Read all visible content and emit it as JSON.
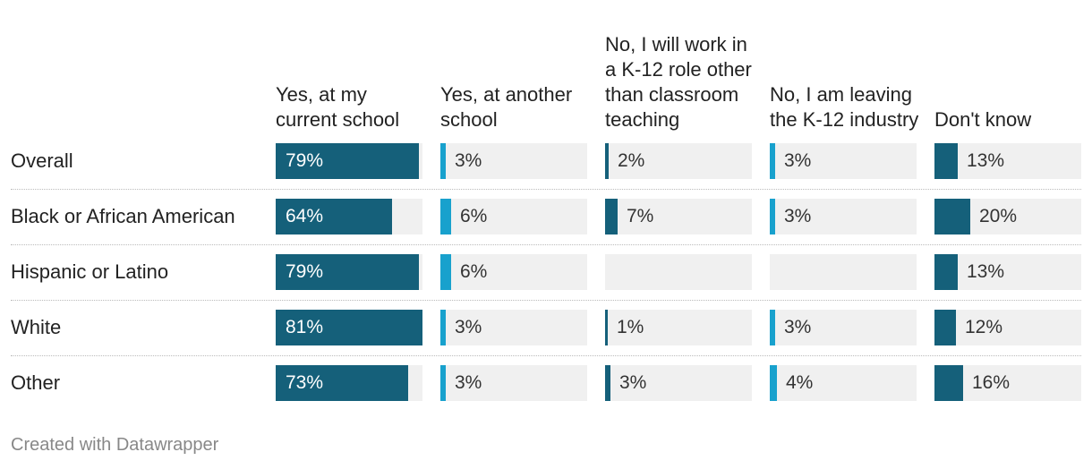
{
  "chart_data": {
    "type": "table",
    "columns": [
      "Yes, at my current school",
      "Yes, at another school",
      "No, I will work in a K-12 role other than classroom teaching",
      "No, I am leaving the K-12 industry",
      "Don't know"
    ],
    "column_colors": [
      "#15607a",
      "#18a1cd",
      "#15607a",
      "#18a1cd",
      "#15607a"
    ],
    "rows": [
      {
        "label": "Overall",
        "values": [
          79,
          3,
          2,
          3,
          13
        ]
      },
      {
        "label": "Black or African American",
        "values": [
          64,
          6,
          7,
          3,
          20
        ]
      },
      {
        "label": "Hispanic or Latino",
        "values": [
          79,
          6,
          null,
          null,
          13
        ]
      },
      {
        "label": "White",
        "values": [
          81,
          3,
          1,
          3,
          12
        ]
      },
      {
        "label": "Other",
        "values": [
          73,
          3,
          3,
          4,
          16
        ]
      }
    ],
    "value_suffix": "%",
    "max_value": 81
  },
  "footer": "Created with Datawrapper"
}
